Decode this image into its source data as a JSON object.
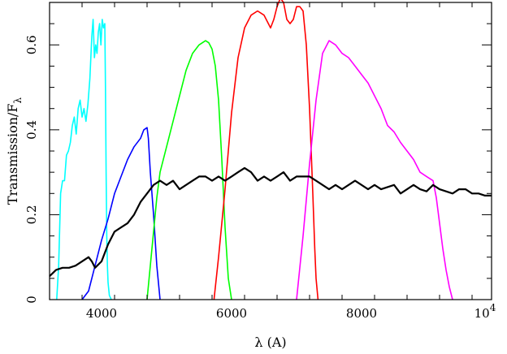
{
  "chart_data": {
    "type": "line",
    "title": "",
    "xlabel": "λ (A)",
    "ylabel_main": "Transmission/F",
    "ylabel_sub": "λ",
    "xlim": [
      3200,
      10000
    ],
    "ylim": [
      0,
      0.7
    ],
    "x_ticks": [
      {
        "value": 4000,
        "label": "4000"
      },
      {
        "value": 6000,
        "label": "6000"
      },
      {
        "value": 8000,
        "label": "8000"
      }
    ],
    "x_last_tick": {
      "value": 10000,
      "base": "10",
      "exponent": "4"
    },
    "y_ticks": [
      {
        "value": 0,
        "label": "0"
      },
      {
        "value": 0.2,
        "label": "0.2"
      },
      {
        "value": 0.4,
        "label": "0.4"
      },
      {
        "value": 0.6,
        "label": "0.6"
      }
    ],
    "x_minor_step": 500,
    "y_minor_step": 0.05,
    "series": [
      {
        "color": "#00ffff",
        "x": [
          3310,
          3340,
          3370,
          3400,
          3430,
          3460,
          3490,
          3520,
          3550,
          3580,
          3610,
          3640,
          3670,
          3700,
          3730,
          3760,
          3790,
          3820,
          3850,
          3870,
          3890,
          3910,
          3930,
          3950,
          3970,
          3990,
          4010,
          4030,
          4050,
          4060,
          4070,
          4080,
          4090,
          4100,
          4120,
          4150
        ],
        "y": [
          0,
          0.08,
          0.25,
          0.28,
          0.28,
          0.34,
          0.35,
          0.37,
          0.41,
          0.43,
          0.39,
          0.45,
          0.47,
          0.43,
          0.45,
          0.42,
          0.46,
          0.52,
          0.62,
          0.66,
          0.57,
          0.6,
          0.58,
          0.63,
          0.65,
          0.6,
          0.66,
          0.64,
          0.65,
          0.5,
          0.3,
          0.15,
          0.08,
          0.04,
          0.01,
          0
        ]
      },
      {
        "color": "#0000ff",
        "x": [
          3700,
          3800,
          3900,
          4000,
          4100,
          4200,
          4300,
          4400,
          4500,
          4600,
          4650,
          4700,
          4720,
          4750,
          4800,
          4850,
          4900
        ],
        "y": [
          0,
          0.02,
          0.08,
          0.14,
          0.19,
          0.25,
          0.29,
          0.33,
          0.36,
          0.38,
          0.4,
          0.405,
          0.38,
          0.3,
          0.2,
          0.08,
          0
        ]
      },
      {
        "color": "#00ff00",
        "x": [
          4700,
          4750,
          4800,
          4850,
          4900,
          5000,
          5100,
          5200,
          5300,
          5400,
          5500,
          5600,
          5650,
          5700,
          5750,
          5800,
          5850,
          5900,
          5950,
          6000
        ],
        "y": [
          0,
          0.08,
          0.16,
          0.24,
          0.3,
          0.36,
          0.42,
          0.48,
          0.54,
          0.58,
          0.6,
          0.61,
          0.605,
          0.59,
          0.55,
          0.47,
          0.33,
          0.17,
          0.05,
          0
        ]
      },
      {
        "color": "#ff0000",
        "x": [
          5730,
          5800,
          5900,
          6000,
          6100,
          6200,
          6300,
          6400,
          6500,
          6600,
          6650,
          6700,
          6750,
          6800,
          6850,
          6900,
          6950,
          7000,
          7050,
          7100,
          7150,
          7200,
          7250,
          7280,
          7300,
          7330
        ],
        "y": [
          0,
          0.1,
          0.26,
          0.44,
          0.57,
          0.64,
          0.67,
          0.68,
          0.67,
          0.64,
          0.66,
          0.69,
          0.71,
          0.7,
          0.66,
          0.65,
          0.66,
          0.69,
          0.69,
          0.68,
          0.6,
          0.45,
          0.25,
          0.12,
          0.05,
          0
        ]
      },
      {
        "color": "#ff00ff",
        "x": [
          7000,
          7100,
          7200,
          7300,
          7400,
          7500,
          7600,
          7700,
          7800,
          7900,
          8000,
          8100,
          8200,
          8300,
          8400,
          8500,
          8600,
          8700,
          8800,
          8900,
          9000,
          9100,
          9150,
          9200,
          9250,
          9300,
          9350,
          9400
        ],
        "y": [
          0,
          0.15,
          0.32,
          0.47,
          0.58,
          0.61,
          0.6,
          0.58,
          0.57,
          0.55,
          0.53,
          0.51,
          0.48,
          0.45,
          0.41,
          0.395,
          0.37,
          0.35,
          0.33,
          0.3,
          0.29,
          0.28,
          0.24,
          0.18,
          0.12,
          0.07,
          0.03,
          0
        ]
      },
      {
        "color": "#000000",
        "x": [
          3200,
          3300,
          3400,
          3500,
          3600,
          3700,
          3800,
          3850,
          3900,
          4000,
          4100,
          4200,
          4300,
          4400,
          4500,
          4600,
          4700,
          4800,
          4900,
          5000,
          5100,
          5200,
          5300,
          5400,
          5500,
          5600,
          5700,
          5800,
          5900,
          6000,
          6100,
          6200,
          6300,
          6400,
          6500,
          6600,
          6700,
          6800,
          6900,
          7000,
          7100,
          7200,
          7300,
          7400,
          7500,
          7600,
          7700,
          7800,
          7900,
          8000,
          8100,
          8200,
          8300,
          8400,
          8500,
          8600,
          8700,
          8800,
          8900,
          9000,
          9100,
          9200,
          9300,
          9400,
          9500,
          9600,
          9700,
          9800,
          9900,
          10000
        ],
        "y": [
          0.055,
          0.07,
          0.075,
          0.075,
          0.08,
          0.09,
          0.1,
          0.09,
          0.075,
          0.09,
          0.13,
          0.16,
          0.17,
          0.18,
          0.2,
          0.23,
          0.25,
          0.27,
          0.28,
          0.27,
          0.28,
          0.26,
          0.27,
          0.28,
          0.29,
          0.29,
          0.28,
          0.29,
          0.28,
          0.29,
          0.3,
          0.31,
          0.3,
          0.28,
          0.29,
          0.28,
          0.29,
          0.3,
          0.28,
          0.29,
          0.29,
          0.29,
          0.28,
          0.27,
          0.26,
          0.27,
          0.26,
          0.27,
          0.28,
          0.27,
          0.26,
          0.27,
          0.26,
          0.265,
          0.27,
          0.25,
          0.26,
          0.27,
          0.26,
          0.255,
          0.27,
          0.26,
          0.255,
          0.25,
          0.26,
          0.26,
          0.25,
          0.25,
          0.245,
          0.245
        ]
      }
    ]
  }
}
